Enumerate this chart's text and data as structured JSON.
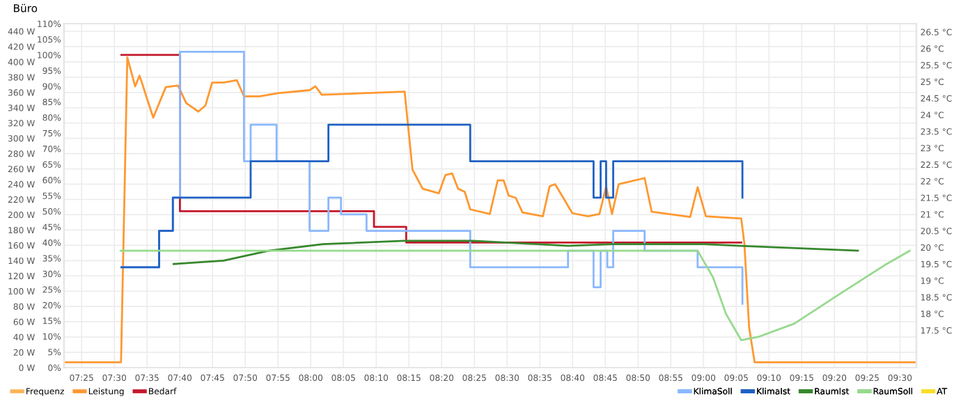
{
  "chart_data": {
    "type": "line",
    "title": "Büro",
    "legend": "bottom",
    "grid": true,
    "xlim": [
      7.372,
      9.542
    ],
    "xticks": [
      {
        "value": 7.41667,
        "label": "07:25"
      },
      {
        "value": 7.5,
        "label": "07:30"
      },
      {
        "value": 7.58333,
        "label": "07:35"
      },
      {
        "value": 7.66667,
        "label": "07:40"
      },
      {
        "value": 7.75,
        "label": "07:45"
      },
      {
        "value": 7.83333,
        "label": "07:50"
      },
      {
        "value": 7.91667,
        "label": "07:55"
      },
      {
        "value": 8.0,
        "label": "08:00"
      },
      {
        "value": 8.08333,
        "label": "08:05"
      },
      {
        "value": 8.16667,
        "label": "08:10"
      },
      {
        "value": 8.25,
        "label": "08:15"
      },
      {
        "value": 8.33333,
        "label": "08:20"
      },
      {
        "value": 8.41667,
        "label": "08:25"
      },
      {
        "value": 8.5,
        "label": "08:30"
      },
      {
        "value": 8.58333,
        "label": "08:35"
      },
      {
        "value": 8.66667,
        "label": "08:40"
      },
      {
        "value": 8.75,
        "label": "08:45"
      },
      {
        "value": 8.83333,
        "label": "08:50"
      },
      {
        "value": 8.91667,
        "label": "08:55"
      },
      {
        "value": 9.0,
        "label": "09:00"
      },
      {
        "value": 9.08333,
        "label": "09:05"
      },
      {
        "value": 9.16667,
        "label": "09:10"
      },
      {
        "value": 9.25,
        "label": "09:15"
      },
      {
        "value": 9.33333,
        "label": "09:20"
      },
      {
        "value": 9.41667,
        "label": "09:25"
      },
      {
        "value": 9.5,
        "label": "09:30"
      }
    ],
    "ylim": [
      0,
      450
    ],
    "yticks": [
      {
        "value": 0,
        "label": "0 W"
      },
      {
        "value": 20,
        "label": "20 W"
      },
      {
        "value": 40,
        "label": "40 W"
      },
      {
        "value": 60,
        "label": "60 W"
      },
      {
        "value": 80,
        "label": "80 W"
      },
      {
        "value": 100,
        "label": "100 W"
      },
      {
        "value": 120,
        "label": "120 W"
      },
      {
        "value": 140,
        "label": "140 W"
      },
      {
        "value": 160,
        "label": "160 W"
      },
      {
        "value": 180,
        "label": "180 W"
      },
      {
        "value": 200,
        "label": "200 W"
      },
      {
        "value": 220,
        "label": "220 W"
      },
      {
        "value": 240,
        "label": "240 W"
      },
      {
        "value": 260,
        "label": "260 W"
      },
      {
        "value": 280,
        "label": "280 W"
      },
      {
        "value": 300,
        "label": "300 W"
      },
      {
        "value": 320,
        "label": "320 W"
      },
      {
        "value": 340,
        "label": "340 W"
      },
      {
        "value": 360,
        "label": "360 W"
      },
      {
        "value": 380,
        "label": "380 W"
      },
      {
        "value": 400,
        "label": "400 W"
      },
      {
        "value": 420,
        "label": "420 W"
      },
      {
        "value": 440,
        "label": "440 W"
      }
    ],
    "y2lim": [
      0,
      110
    ],
    "y2ticks": [
      {
        "value": 0,
        "label": "0%"
      },
      {
        "value": 5,
        "label": "5%"
      },
      {
        "value": 10,
        "label": "10%"
      },
      {
        "value": 15,
        "label": "15%"
      },
      {
        "value": 20,
        "label": "20%"
      },
      {
        "value": 25,
        "label": "25%"
      },
      {
        "value": 30,
        "label": "30%"
      },
      {
        "value": 35,
        "label": "35%"
      },
      {
        "value": 40,
        "label": "40%"
      },
      {
        "value": 45,
        "label": "45%"
      },
      {
        "value": 50,
        "label": "50%"
      },
      {
        "value": 55,
        "label": "55%"
      },
      {
        "value": 60,
        "label": "60%"
      },
      {
        "value": 65,
        "label": "65%"
      },
      {
        "value": 70,
        "label": "70%"
      },
      {
        "value": 75,
        "label": "75%"
      },
      {
        "value": 80,
        "label": "80%"
      },
      {
        "value": 85,
        "label": "85%"
      },
      {
        "value": 90,
        "label": "90%"
      },
      {
        "value": 95,
        "label": "95%"
      },
      {
        "value": 100,
        "label": "100%"
      },
      {
        "value": 105,
        "label": "105%"
      },
      {
        "value": 110,
        "label": "110%"
      }
    ],
    "y3lim": [
      16.375,
      26.75
    ],
    "y3ticks": [
      {
        "value": 17.5,
        "label": "17.5 °C"
      },
      {
        "value": 18,
        "label": "18 °C"
      },
      {
        "value": 18.5,
        "label": "18.5 °C"
      },
      {
        "value": 19,
        "label": "19 °C"
      },
      {
        "value": 19.5,
        "label": "19.5 °C"
      },
      {
        "value": 20,
        "label": "20 °C"
      },
      {
        "value": 20.5,
        "label": "20.5 °C"
      },
      {
        "value": 21,
        "label": "21 °C"
      },
      {
        "value": 21.5,
        "label": "21.5 °C"
      },
      {
        "value": 22,
        "label": "22 °C"
      },
      {
        "value": 22.5,
        "label": "22.5 °C"
      },
      {
        "value": 23,
        "label": "23 °C"
      },
      {
        "value": 23.5,
        "label": "23.5 °C"
      },
      {
        "value": 24,
        "label": "24 °C"
      },
      {
        "value": 24.5,
        "label": "24.5 °C"
      },
      {
        "value": 25,
        "label": "25 °C"
      },
      {
        "value": 25.5,
        "label": "25.5 °C"
      },
      {
        "value": 26,
        "label": "26 °C"
      },
      {
        "value": 26.5,
        "label": "26.5 °C"
      }
    ],
    "series": [
      {
        "name": "Frequenz",
        "color": "#ffb357",
        "axis": "y"
      },
      {
        "name": "Leistung",
        "color": "#ff9830",
        "axis": "y",
        "x": [
          7.372,
          7.517,
          7.533,
          7.553,
          7.564,
          7.57,
          7.599,
          7.631,
          7.662,
          7.683,
          7.714,
          7.732,
          7.749,
          7.778,
          7.812,
          7.83,
          7.87,
          7.916,
          7.997,
          8.012,
          8.028,
          8.239,
          8.259,
          8.285,
          8.326,
          8.343,
          8.36,
          8.375,
          8.392,
          8.406,
          8.456,
          8.476,
          8.491,
          8.504,
          8.522,
          8.539,
          8.591,
          8.608,
          8.622,
          8.643,
          8.666,
          8.706,
          8.735,
          8.752,
          8.767,
          8.784,
          8.85,
          8.868,
          8.966,
          8.985,
          9.006,
          9.096,
          9.104,
          9.116,
          9.13,
          9.542
        ],
        "values": [
          7,
          7,
          406,
          368,
          382,
          373,
          327,
          367,
          369,
          346,
          335,
          343,
          373,
          373,
          376,
          355,
          355,
          359,
          363,
          368,
          357,
          361,
          259,
          234,
          228,
          252,
          254,
          234,
          230,
          207,
          201,
          245,
          245,
          225,
          222,
          203,
          198,
          237,
          240,
          222,
          202,
          198,
          201,
          237,
          201,
          240,
          248,
          204,
          197,
          236,
          198,
          195,
          162,
          53,
          7,
          7
        ]
      },
      {
        "name": "Bedarf",
        "color": "#c4162a",
        "axis": "y2",
        "type": "step",
        "x": [
          7.518,
          7.667,
          8.161,
          8.243,
          9.096
        ],
        "values": [
          100,
          50,
          45,
          40,
          40
        ]
      },
      {
        "name": "KlimaSoll",
        "color": "#8ab8ff",
        "axis": "y3",
        "type": "step",
        "x": [
          7.518,
          7.614,
          7.649,
          7.667,
          7.83,
          7.847,
          7.913,
          7.997,
          8.045,
          8.077,
          8.142,
          8.406,
          8.655,
          8.72,
          8.738,
          8.755,
          8.77,
          8.85,
          8.985,
          9.099
        ],
        "values": [
          19.4,
          20.5,
          21.5,
          25.9,
          22.6,
          23.7,
          22.6,
          20.5,
          21.5,
          21.0,
          20.5,
          19.4,
          19.9,
          18.8,
          19.9,
          19.4,
          20.5,
          19.9,
          19.4,
          18.3
        ]
      },
      {
        "name": "KlimaIst",
        "color": "#1f60c4",
        "axis": "y3",
        "type": "step",
        "x": [
          7.518,
          7.614,
          7.649,
          7.847,
          8.045,
          8.406,
          8.72,
          8.738,
          8.752,
          8.77,
          9.099
        ],
        "values": [
          19.4,
          20.5,
          21.5,
          22.6,
          23.7,
          22.6,
          21.5,
          22.6,
          21.5,
          22.6,
          21.5
        ]
      },
      {
        "name": "RaumIst",
        "color": "#37872d",
        "axis": "y3",
        "x": [
          7.651,
          7.778,
          7.893,
          8.032,
          8.239,
          8.412,
          8.655,
          8.77,
          9.001,
          9.093,
          9.393
        ],
        "values": [
          19.5,
          19.6,
          19.9,
          20.1,
          20.2,
          20.2,
          20.05,
          20.1,
          20.1,
          20.05,
          19.9
        ]
      },
      {
        "name": "RaumSoll",
        "color": "#96d98d",
        "axis": "y3",
        "x": [
          7.516,
          8.985,
          9.024,
          9.057,
          9.096,
          9.139,
          9.231,
          9.347,
          9.466,
          9.525
        ],
        "values": [
          19.9,
          19.9,
          19.1,
          18.0,
          17.2,
          17.3,
          17.7,
          18.6,
          19.5,
          19.9
        ]
      },
      {
        "name": "AT",
        "color": "#fade2a",
        "axis": "y3"
      }
    ]
  }
}
